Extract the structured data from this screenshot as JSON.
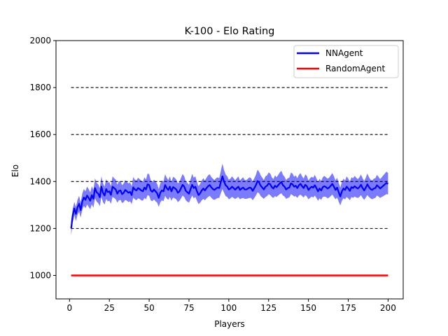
{
  "chart_data": {
    "type": "line",
    "title": "K-100 - Elo Rating",
    "xlabel": "Players",
    "ylabel": "Elo",
    "xlim": [
      -8.5,
      209.5
    ],
    "ylim": [
      900,
      2000
    ],
    "x_ticks": [
      0,
      25,
      50,
      75,
      100,
      125,
      150,
      175,
      200
    ],
    "y_ticks": [
      1000,
      1200,
      1400,
      1600,
      1800,
      2000
    ],
    "reference_lines": [
      1200,
      1400,
      1600,
      1800
    ],
    "reference_x_range": [
      1,
      200
    ],
    "grid": false,
    "legend_position": "top-right",
    "series": [
      {
        "name": "NNAgent",
        "color": "#0000ff",
        "band_color": "#7b7bff",
        "x_range": [
          1,
          200
        ],
        "values": [
          1200,
          1255,
          1285,
          1262,
          1290,
          1305,
          1278,
          1315,
          1332,
          1322,
          1340,
          1330,
          1318,
          1342,
          1326,
          1372,
          1354,
          1348,
          1333,
          1378,
          1352,
          1340,
          1368,
          1355,
          1358,
          1343,
          1378,
          1372,
          1366,
          1348,
          1360,
          1362,
          1346,
          1352,
          1364,
          1358,
          1352,
          1356,
          1342,
          1375,
          1366,
          1362,
          1372,
          1368,
          1362,
          1358,
          1374,
          1366,
          1388,
          1385,
          1362,
          1356,
          1366,
          1358,
          1350,
          1330,
          1352,
          1362,
          1358,
          1385,
          1372,
          1364,
          1378,
          1358,
          1376,
          1372,
          1366,
          1352,
          1358,
          1372,
          1386,
          1378,
          1360,
          1354,
          1348,
          1368,
          1386,
          1372,
          1378,
          1358,
          1342,
          1350,
          1362,
          1370,
          1362,
          1372,
          1380,
          1385,
          1375,
          1368,
          1364,
          1370,
          1374,
          1372,
          1398,
          1422,
          1400,
          1384,
          1378,
          1366,
          1370,
          1378,
          1372,
          1365,
          1372,
          1378,
          1364,
          1370,
          1374,
          1366,
          1366,
          1370,
          1374,
          1372,
          1360,
          1372,
          1384,
          1402,
          1396,
          1382,
          1374,
          1366,
          1378,
          1382,
          1392,
          1388,
          1376,
          1370,
          1382,
          1376,
          1384,
          1392,
          1398,
          1384,
          1378,
          1366,
          1372,
          1374,
          1392,
          1388,
          1378,
          1382,
          1372,
          1384,
          1390,
          1380,
          1372,
          1386,
          1380,
          1364,
          1372,
          1378,
          1374,
          1384,
          1372,
          1358,
          1370,
          1362,
          1376,
          1380,
          1376,
          1370,
          1374,
          1382,
          1390,
          1378,
          1364,
          1374,
          1354,
          1336,
          1358,
          1370,
          1364,
          1378,
          1370,
          1360,
          1376,
          1372,
          1380,
          1374,
          1370,
          1376,
          1386,
          1372,
          1362,
          1374,
          1388,
          1376,
          1368,
          1364,
          1370,
          1372,
          1384,
          1378,
          1370,
          1376,
          1382,
          1388,
          1394,
          1390
        ],
        "band_halfwidth": [
          30,
          30,
          28,
          30,
          32,
          34,
          32,
          34,
          36,
          36,
          38,
          38,
          36,
          38,
          38,
          42,
          40,
          40,
          38,
          44,
          40,
          38,
          42,
          40,
          40,
          38,
          44,
          42,
          42,
          38,
          40,
          40,
          38,
          40,
          42,
          40,
          40,
          40,
          38,
          44,
          42,
          42,
          44,
          42,
          42,
          40,
          44,
          42,
          46,
          46,
          42,
          40,
          42,
          42,
          40,
          38,
          40,
          42,
          42,
          46,
          44,
          42,
          44,
          40,
          44,
          44,
          42,
          40,
          40,
          44,
          46,
          44,
          40,
          40,
          38,
          42,
          46,
          44,
          44,
          40,
          38,
          40,
          42,
          44,
          42,
          44,
          46,
          46,
          44,
          44,
          42,
          44,
          44,
          42,
          48,
          54,
          48,
          46,
          44,
          42,
          42,
          44,
          42,
          40,
          42,
          44,
          40,
          42,
          44,
          40,
          40,
          42,
          44,
          42,
          40,
          42,
          44,
          48,
          46,
          44,
          42,
          40,
          44,
          44,
          46,
          46,
          42,
          40,
          44,
          42,
          44,
          46,
          48,
          44,
          42,
          40,
          42,
          42,
          46,
          46,
          42,
          44,
          42,
          44,
          46,
          42,
          40,
          44,
          44,
          40,
          42,
          42,
          42,
          44,
          42,
          40,
          42,
          40,
          42,
          44,
          42,
          42,
          42,
          44,
          46,
          44,
          40,
          42,
          40,
          38,
          40,
          42,
          40,
          44,
          42,
          40,
          42,
          42,
          44,
          42,
          40,
          42,
          44,
          42,
          40,
          42,
          46,
          42,
          40,
          40,
          42,
          42,
          44,
          42,
          40,
          42,
          44,
          46,
          48,
          46
        ]
      },
      {
        "name": "RandomAgent",
        "color": "#ff0000",
        "x_range": [
          1,
          200
        ],
        "values": [
          1000
        ]
      }
    ]
  }
}
